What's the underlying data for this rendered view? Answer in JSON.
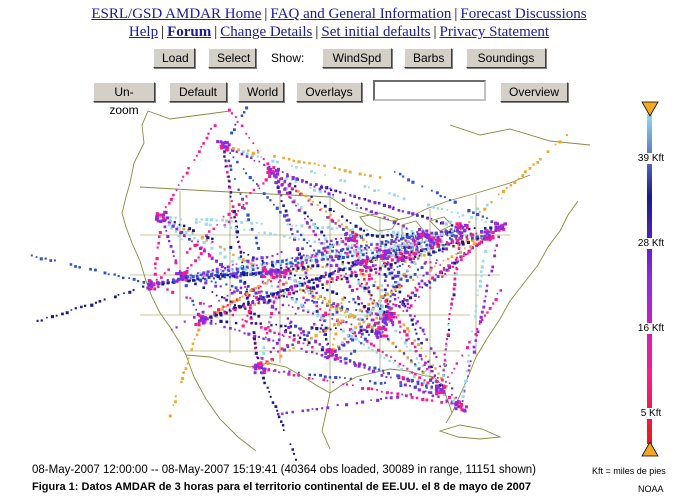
{
  "nav": {
    "row1": [
      "ESRL/GSD AMDAR Home",
      "FAQ and General Information",
      "Forecast Discussions"
    ],
    "row2": [
      "Help",
      "Forum",
      "Change Details",
      "Set initial defaults",
      "Privacy Statement"
    ],
    "current": "Forum"
  },
  "toolbar1": {
    "load": "Load",
    "select": "Select",
    "show_label": "Show:",
    "windspd": "WindSpd",
    "barbs": "Barbs",
    "soundings": "Soundings"
  },
  "toolbar2": {
    "unzoom": "Un-zoom",
    "default": "Default",
    "world": "World",
    "overlays": "Overlays",
    "input_value": "",
    "overview": "Overview"
  },
  "altitude_scale": {
    "labels": [
      "39 Kft",
      "28 Kft",
      "16 Kft",
      "5 Kft"
    ],
    "colors": [
      "#9ad8ee",
      "#1a1a8c",
      "#8a2be2",
      "#ff1a8c",
      "#e31a1c"
    ],
    "handle_color": "#f5a623"
  },
  "status": "08-May-2007 12:00:00 -- 08-May-2007 15:19:41 (40364 obs loaded, 30089 in range, 11151 shown)",
  "kft_note": "Kft = miles de pies",
  "caption": "Figura 1: Datos AMDAR de 3 horas para el territorio continental de EE.UU. el 8 de mayo de 2007",
  "credit": "NOAA",
  "map": {
    "land_color": "#ffffff",
    "border_color": "#8a8a40",
    "track_colors": [
      "#9ad8ee",
      "#f0a830",
      "#1a1a8c",
      "#3050d0",
      "#8a2be2",
      "#ff1a8c"
    ]
  }
}
